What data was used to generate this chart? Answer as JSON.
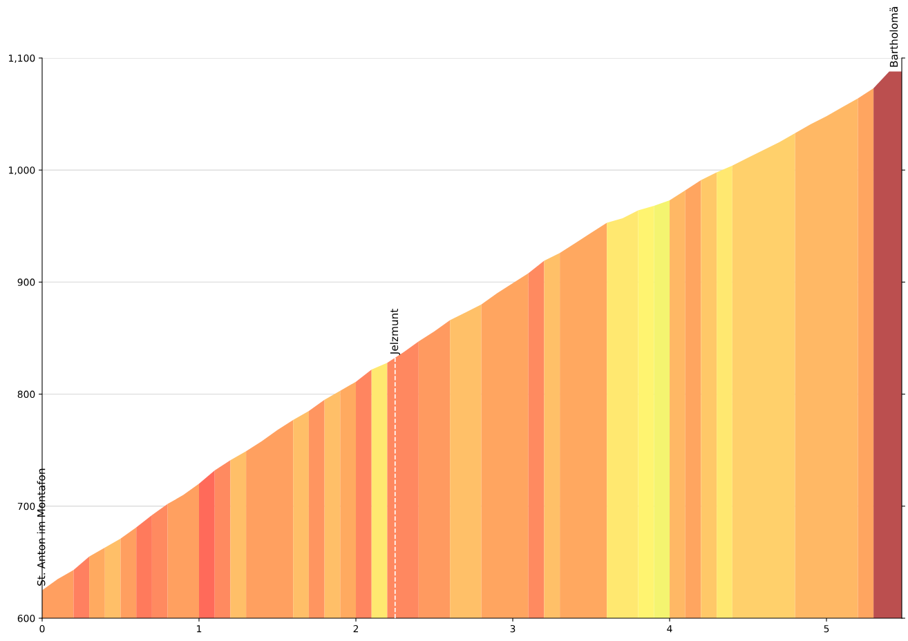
{
  "chart_data": {
    "type": "area",
    "series": [
      {
        "color": "#ff9f60",
        "x": [
          0,
          0.1,
          0.2
        ],
        "values": [
          625,
          635,
          643
        ]
      },
      {
        "color": "#ff8060",
        "x": [
          0.2,
          0.3
        ],
        "values": [
          643,
          655
        ]
      },
      {
        "color": "#ffaa60",
        "x": [
          0.3,
          0.4
        ],
        "values": [
          655,
          663
        ]
      },
      {
        "color": "#ffbf68",
        "x": [
          0.4,
          0.5
        ],
        "values": [
          663,
          671
        ]
      },
      {
        "color": "#ff9f60",
        "x": [
          0.5,
          0.6
        ],
        "values": [
          671,
          681
        ]
      },
      {
        "color": "#ff7a5c",
        "x": [
          0.6,
          0.7
        ],
        "values": [
          681,
          692
        ]
      },
      {
        "color": "#ff8a60",
        "x": [
          0.7,
          0.8
        ],
        "values": [
          692,
          702
        ]
      },
      {
        "color": "#ffa060",
        "x": [
          0.8,
          0.9,
          1.0
        ],
        "values": [
          702,
          710,
          720
        ]
      },
      {
        "color": "#ff6a5a",
        "x": [
          1.0,
          1.1
        ],
        "values": [
          720,
          732
        ]
      },
      {
        "color": "#ff8a60",
        "x": [
          1.1,
          1.2
        ],
        "values": [
          732,
          741
        ]
      },
      {
        "color": "#ffbf68",
        "x": [
          1.2,
          1.3
        ],
        "values": [
          741,
          749
        ]
      },
      {
        "color": "#ffa060",
        "x": [
          1.3,
          1.4,
          1.5,
          1.6
        ],
        "values": [
          749,
          758,
          768,
          777
        ]
      },
      {
        "color": "#ffbf68",
        "x": [
          1.6,
          1.7
        ],
        "values": [
          777,
          785
        ]
      },
      {
        "color": "#ff9560",
        "x": [
          1.7,
          1.8
        ],
        "values": [
          785,
          795
        ]
      },
      {
        "color": "#ffbf68",
        "x": [
          1.8,
          1.9
        ],
        "values": [
          795,
          803
        ]
      },
      {
        "color": "#ffaa60",
        "x": [
          1.9,
          2.0
        ],
        "values": [
          803,
          811
        ]
      },
      {
        "color": "#ff8560",
        "x": [
          2.0,
          2.1
        ],
        "values": [
          811,
          822
        ]
      },
      {
        "color": "#ffe870",
        "x": [
          2.1,
          2.2
        ],
        "values": [
          822,
          828
        ]
      },
      {
        "color": "#ff8860",
        "x": [
          2.2,
          2.3,
          2.4
        ],
        "values": [
          828,
          837,
          847
        ]
      },
      {
        "color": "#ff9a60",
        "x": [
          2.4,
          2.5,
          2.6
        ],
        "values": [
          847,
          856,
          866
        ]
      },
      {
        "color": "#ffc068",
        "x": [
          2.6,
          2.7,
          2.8
        ],
        "values": [
          866,
          873,
          880
        ]
      },
      {
        "color": "#ffa560",
        "x": [
          2.8,
          2.9,
          3.0,
          3.1
        ],
        "values": [
          880,
          890,
          899,
          908
        ]
      },
      {
        "color": "#ff8a60",
        "x": [
          3.1,
          3.2
        ],
        "values": [
          908,
          919
        ]
      },
      {
        "color": "#ffc068",
        "x": [
          3.2,
          3.3
        ],
        "values": [
          919,
          926
        ]
      },
      {
        "color": "#ffa860",
        "x": [
          3.3,
          3.4,
          3.5,
          3.6
        ],
        "values": [
          926,
          935,
          944,
          953
        ]
      },
      {
        "color": "#ffe870",
        "x": [
          3.6,
          3.7,
          3.8
        ],
        "values": [
          953,
          957,
          964
        ]
      },
      {
        "color": "#fff470",
        "x": [
          3.8,
          3.9
        ],
        "values": [
          964,
          968
        ]
      },
      {
        "color": "#f4f470",
        "x": [
          3.9,
          4.0
        ],
        "values": [
          968,
          973
        ]
      },
      {
        "color": "#ffb865",
        "x": [
          4.0,
          4.1
        ],
        "values": [
          973,
          982
        ]
      },
      {
        "color": "#ffa560",
        "x": [
          4.1,
          4.2
        ],
        "values": [
          982,
          991
        ]
      },
      {
        "color": "#ffc868",
        "x": [
          4.2,
          4.3
        ],
        "values": [
          991,
          998
        ]
      },
      {
        "color": "#ffe870",
        "x": [
          4.3,
          4.4
        ],
        "values": [
          998,
          1004
        ]
      },
      {
        "color": "#ffd06b",
        "x": [
          4.4,
          4.5,
          4.6,
          4.7,
          4.8
        ],
        "values": [
          1004,
          1011,
          1018,
          1025,
          1033
        ]
      },
      {
        "color": "#ffb865",
        "x": [
          4.8,
          4.9,
          5.0,
          5.1,
          5.2
        ],
        "values": [
          1033,
          1041,
          1048,
          1056,
          1064
        ]
      },
      {
        "color": "#ffa560",
        "x": [
          5.2,
          5.3
        ],
        "values": [
          1064,
          1073
        ]
      },
      {
        "color": "#bb4f4f",
        "x": [
          5.3,
          5.4,
          5.48
        ],
        "values": [
          1073,
          1088,
          1088
        ]
      }
    ],
    "xlim": [
      0,
      5.48
    ],
    "ylim": [
      600,
      1100
    ],
    "xticks": [
      0,
      1,
      2,
      3,
      4,
      5
    ],
    "yticks": [
      600,
      700,
      800,
      900,
      {
        "value": 1000,
        "label": "1,000"
      },
      {
        "value": 1100,
        "label": "1,100"
      }
    ],
    "grid": "y",
    "annotations": [
      {
        "text": "St. Anton im Montafon",
        "x": 0,
        "y": 625
      },
      {
        "text": "Jelzmunt",
        "x": 2.25,
        "y": 832
      },
      {
        "text": "Bartholomä",
        "x": 5.48,
        "y": 1088
      }
    ],
    "ref_lines": [
      {
        "axis": "x",
        "value": 2.25,
        "color": "#ffffff",
        "line_style": "dashed"
      }
    ]
  }
}
